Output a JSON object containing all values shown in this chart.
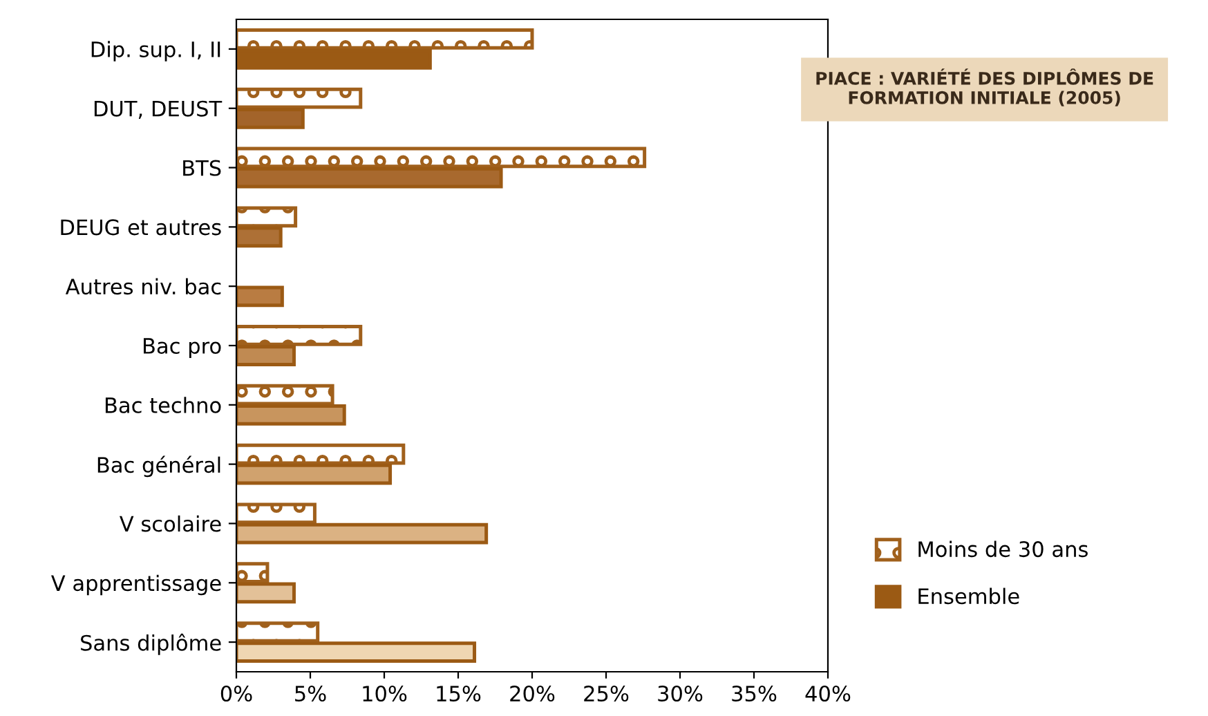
{
  "chart_data": {
    "type": "bar",
    "orientation": "horizontal",
    "title": "PIACE : VARIÉTÉ DES DIPLÔMES DE\nFORMATION INITIALE (2005)",
    "categories": [
      "Dip. sup. I, II",
      "DUT, DEUST",
      "BTS",
      "DEUG et autres",
      "Autres niv. bac",
      "Bac pro",
      "Bac techno",
      "Bac général",
      "V scolaire",
      "V apprentissage",
      "Sans diplôme"
    ],
    "series": [
      {
        "name": "Moins de 30 ans",
        "color": "#a0601c",
        "values": [
          20.0,
          8.4,
          27.6,
          4.0,
          null,
          8.4,
          6.5,
          11.3,
          5.3,
          2.1,
          5.5
        ]
      },
      {
        "name": "Ensemble",
        "color": "#9b5a14",
        "colors": [
          "#9b5a14",
          "#a3642a",
          "#a8692e",
          "#ad7036",
          "#b97c42",
          "#c08a52",
          "#c8955e",
          "#d0a26e",
          "#dbb283",
          "#e3c198",
          "#efd6b2"
        ],
        "values": [
          13.1,
          4.5,
          17.9,
          3.0,
          3.1,
          3.9,
          7.3,
          10.4,
          16.9,
          3.9,
          16.1
        ]
      }
    ],
    "xlim": [
      0,
      40
    ],
    "xticks": [
      {
        "value": 0,
        "label": "0%"
      },
      {
        "value": 5,
        "label": "5%"
      },
      {
        "value": 10,
        "label": "10%"
      },
      {
        "value": 15,
        "label": "15%"
      },
      {
        "value": 20,
        "label": "20%"
      },
      {
        "value": 25,
        "label": "25%"
      },
      {
        "value": 30,
        "label": "30%"
      },
      {
        "value": 35,
        "label": "35%"
      },
      {
        "value": 40,
        "label": "40%"
      }
    ],
    "grid": false,
    "legend": "right"
  }
}
